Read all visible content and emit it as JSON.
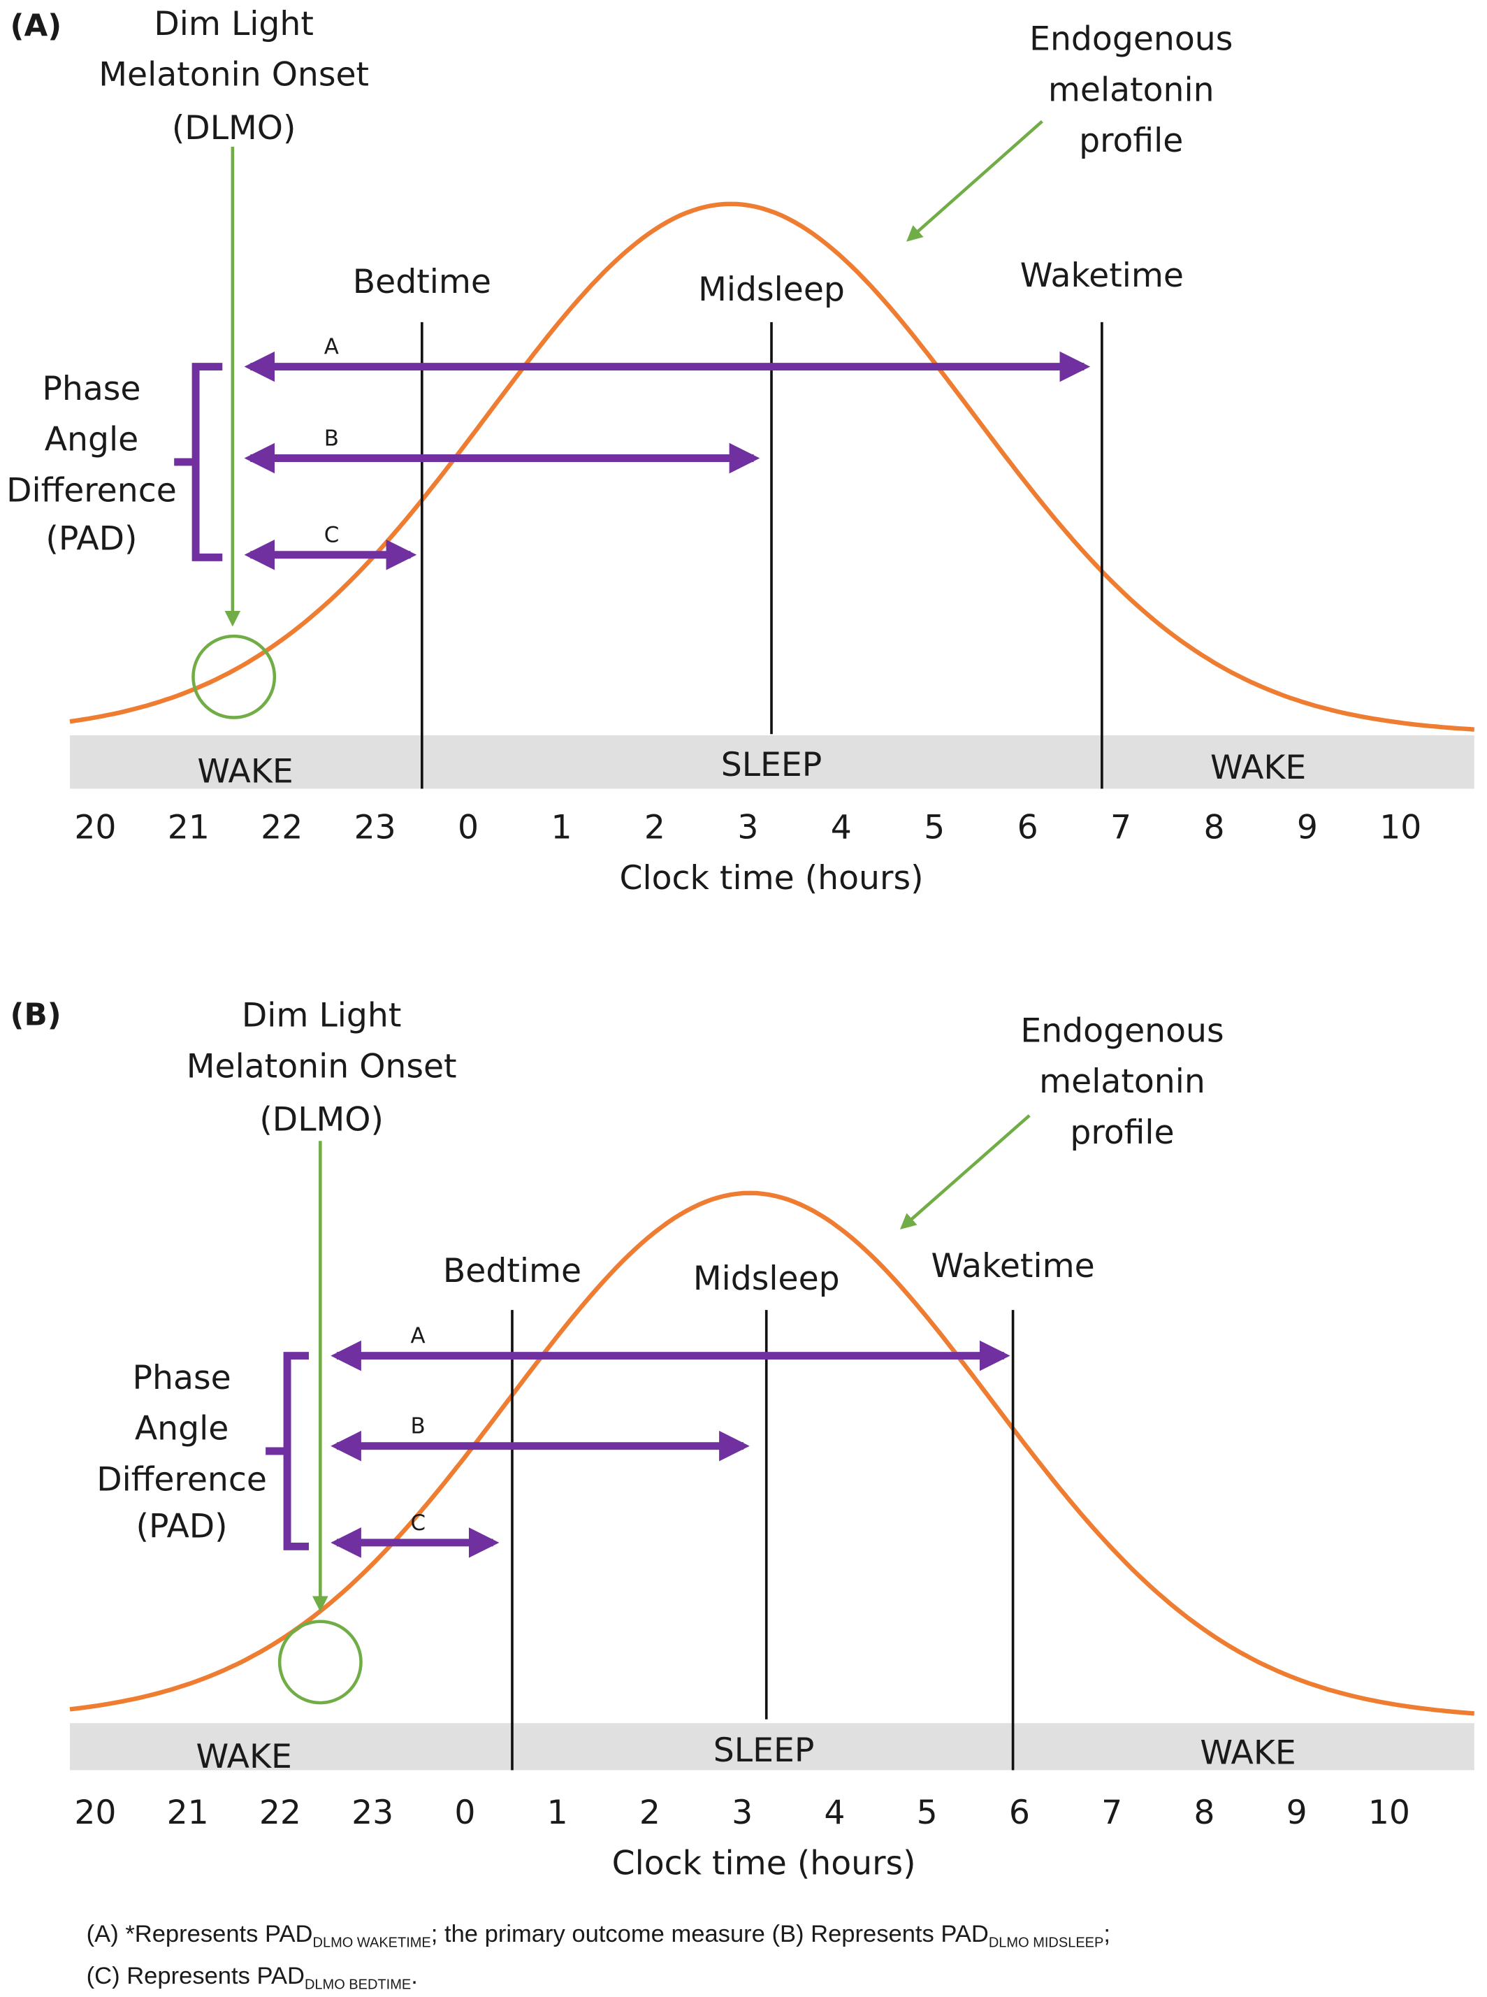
{
  "colors": {
    "curve": "#ee7d31",
    "arrow": "#7030a0",
    "dlmo": "#70ad47",
    "band": "#e0e0e0",
    "line": "#111111"
  },
  "panels": [
    {
      "panel_label": "(A)",
      "dlmo_label": [
        "Dim Light",
        "Melatonin Onset",
        "(DLMO)"
      ],
      "profile_label": [
        "Endogenous",
        "melatonin",
        "profile"
      ],
      "pad_label": [
        "Phase",
        "Angle",
        "Difference",
        "(PAD)"
      ],
      "markers": {
        "bedtime": "Bedtime",
        "midsleep": "Midsleep",
        "waketime": "Waketime"
      },
      "arrow_labels": [
        "A",
        "B",
        "C"
      ],
      "bands": [
        "WAKE",
        "SLEEP",
        "WAKE"
      ],
      "ticks": [
        "20",
        "21",
        "22",
        "23",
        "0",
        "1",
        "2",
        "3",
        "4",
        "5",
        "6",
        "7",
        "8",
        "9",
        "10"
      ],
      "xlabel": "Clock time (hours)"
    },
    {
      "panel_label": "(B)",
      "dlmo_label": [
        "Dim Light",
        "Melatonin Onset",
        "(DLMO)"
      ],
      "profile_label": [
        "Endogenous",
        "melatonin",
        "profile"
      ],
      "pad_label": [
        "Phase",
        "Angle",
        "Difference",
        "(PAD)"
      ],
      "markers": {
        "bedtime": "Bedtime",
        "midsleep": "Midsleep",
        "waketime": "Waketime"
      },
      "arrow_labels": [
        "A",
        "B",
        "C"
      ],
      "bands": [
        "WAKE",
        "SLEEP",
        "WAKE"
      ],
      "ticks": [
        "20",
        "21",
        "22",
        "23",
        "0",
        "1",
        "2",
        "3",
        "4",
        "5",
        "6",
        "7",
        "8",
        "9",
        "10"
      ],
      "xlabel": "Clock time (hours)"
    }
  ],
  "caption": {
    "line1": [
      {
        "t": "(A) *Represents PAD"
      },
      {
        "t": "DLMO WAKETIME",
        "sub": true
      },
      {
        "t": "; the primary outcome measure (B) Represents PAD"
      },
      {
        "t": "DLMO MIDSLEEP",
        "sub": true
      },
      {
        "t": ";"
      }
    ],
    "line2": [
      {
        "t": "(C) Represents PAD"
      },
      {
        "t": "DLMO BEDTIME",
        "sub": true
      },
      {
        "t": "."
      }
    ]
  }
}
